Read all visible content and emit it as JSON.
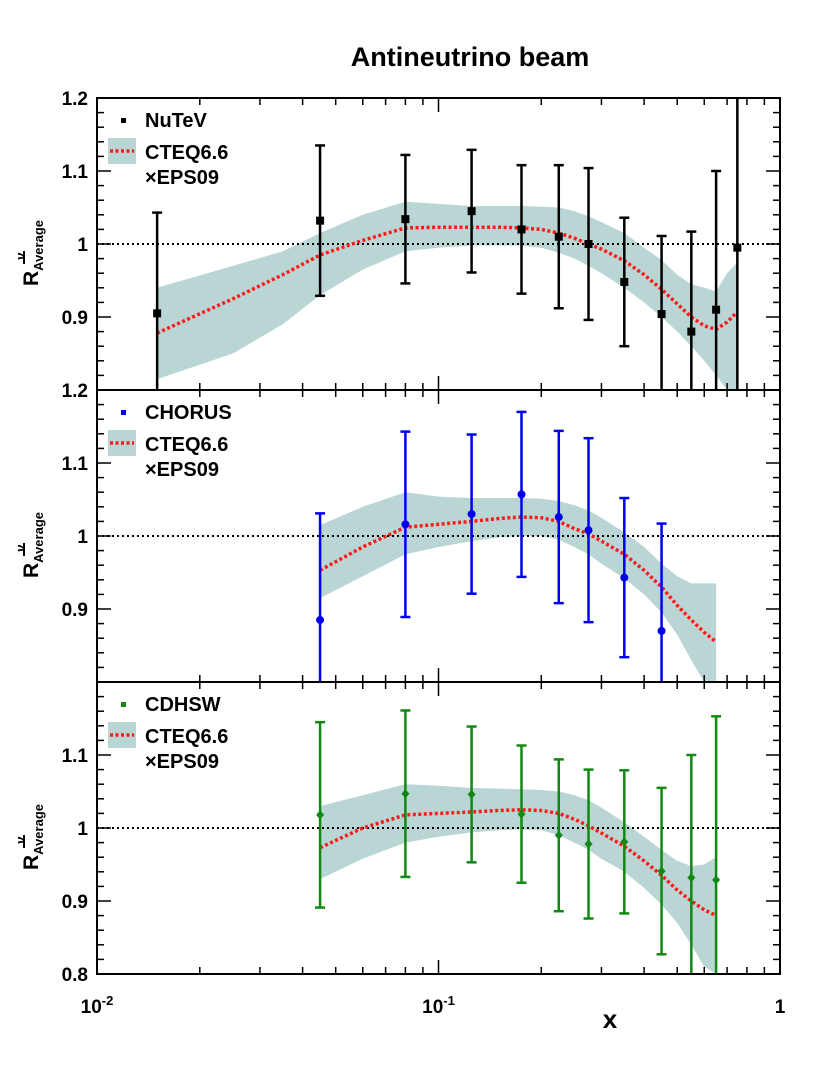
{
  "chart_data": {
    "type": "scatter",
    "title": "Antineutrino beam",
    "xlabel": "x",
    "xscale": "log",
    "xlim": [
      0.01,
      1
    ],
    "x_tick_labels": [
      {
        "x": 0.01,
        "base": "10",
        "exp": "-2"
      },
      {
        "x": 0.1,
        "base": "10",
        "exp": "-1"
      },
      {
        "x": 1,
        "base": "1",
        "exp": ""
      }
    ],
    "ylabel": {
      "main": "R",
      "sub": "Average",
      "sup": "ν"
    },
    "reference_line_y": 1,
    "colors": {
      "band": "#b9d5d4",
      "curve": "#ff1a1a",
      "NuTeV": "#000000",
      "CHORUS": "#0000ee",
      "CDHSW": "#118811"
    },
    "panels": [
      {
        "experiment": "NuTeV",
        "marker": "square",
        "color": "#000000",
        "ylim": [
          0.8,
          1.2
        ],
        "yticks": [
          0.9,
          1,
          1.1,
          1.2
        ],
        "ytick_labels": [
          "0.9",
          "1",
          "1.1",
          "1.2"
        ],
        "legend": [
          "NuTeV",
          "CTEQ6.6",
          "×EPS09"
        ],
        "points": [
          {
            "x": 0.015,
            "y": 0.905,
            "err": 0.138
          },
          {
            "x": 0.045,
            "y": 1.032,
            "err": 0.103
          },
          {
            "x": 0.08,
            "y": 1.034,
            "err": 0.088
          },
          {
            "x": 0.125,
            "y": 1.045,
            "err": 0.084
          },
          {
            "x": 0.175,
            "y": 1.02,
            "err": 0.088
          },
          {
            "x": 0.225,
            "y": 1.01,
            "err": 0.098
          },
          {
            "x": 0.275,
            "y": 1.0,
            "err": 0.104
          },
          {
            "x": 0.35,
            "y": 0.948,
            "err": 0.088
          },
          {
            "x": 0.45,
            "y": 0.904,
            "err": 0.107
          },
          {
            "x": 0.55,
            "y": 0.88,
            "err": 0.137
          },
          {
            "x": 0.65,
            "y": 0.91,
            "err": 0.19
          },
          {
            "x": 0.75,
            "y": 0.995,
            "err": 0.27
          }
        ],
        "curve": {
          "x": [
            0.015,
            0.025,
            0.035,
            0.045,
            0.06,
            0.08,
            0.1,
            0.125,
            0.15,
            0.175,
            0.2,
            0.225,
            0.25,
            0.275,
            0.3,
            0.35,
            0.4,
            0.45,
            0.5,
            0.55,
            0.6,
            0.65,
            0.7,
            0.75
          ],
          "y": [
            0.878,
            0.925,
            0.958,
            0.985,
            1.005,
            1.022,
            1.023,
            1.023,
            1.023,
            1.022,
            1.02,
            1.015,
            1.008,
            1.0,
            0.993,
            0.977,
            0.958,
            0.938,
            0.918,
            0.9,
            0.888,
            0.883,
            0.893,
            0.907
          ]
        },
        "band_upper": [
          0.94,
          0.97,
          0.99,
          1.015,
          1.04,
          1.058,
          1.055,
          1.052,
          1.052,
          1.052,
          1.051,
          1.05,
          1.045,
          1.038,
          1.03,
          1.015,
          0.995,
          0.978,
          0.958,
          0.945,
          0.94,
          0.935,
          0.96,
          0.975
        ],
        "band_lower": [
          0.815,
          0.85,
          0.89,
          0.93,
          0.965,
          0.99,
          0.995,
          0.998,
          0.998,
          0.998,
          0.995,
          0.988,
          0.98,
          0.97,
          0.96,
          0.94,
          0.92,
          0.9,
          0.88,
          0.86,
          0.84,
          0.82,
          0.8,
          0.8
        ]
      },
      {
        "experiment": "CHORUS",
        "marker": "circle",
        "color": "#0000ee",
        "ylim": [
          0.8,
          1.2
        ],
        "yticks": [
          0.9,
          1,
          1.1,
          1.2
        ],
        "ytick_labels": [
          "0.9",
          "1",
          "1.1",
          "1.2"
        ],
        "legend": [
          "CHORUS",
          "CTEQ6.6",
          "×EPS09"
        ],
        "points": [
          {
            "x": 0.045,
            "y": 0.885,
            "err": 0.146
          },
          {
            "x": 0.08,
            "y": 1.016,
            "err": 0.127
          },
          {
            "x": 0.125,
            "y": 1.03,
            "err": 0.109
          },
          {
            "x": 0.175,
            "y": 1.057,
            "err": 0.113
          },
          {
            "x": 0.225,
            "y": 1.026,
            "err": 0.118
          },
          {
            "x": 0.275,
            "y": 1.008,
            "err": 0.126
          },
          {
            "x": 0.35,
            "y": 0.943,
            "err": 0.109
          },
          {
            "x": 0.45,
            "y": 0.87,
            "err": 0.147
          }
        ],
        "curve": {
          "x": [
            0.045,
            0.06,
            0.08,
            0.1,
            0.125,
            0.15,
            0.175,
            0.2,
            0.225,
            0.25,
            0.275,
            0.3,
            0.35,
            0.4,
            0.45,
            0.5,
            0.55,
            0.6,
            0.65
          ],
          "y": [
            0.953,
            0.985,
            1.012,
            1.016,
            1.02,
            1.024,
            1.026,
            1.025,
            1.02,
            1.01,
            1.003,
            0.993,
            0.975,
            0.953,
            0.93,
            0.905,
            0.885,
            0.868,
            0.855
          ]
        },
        "band_upper": [
          1.015,
          1.04,
          1.06,
          1.054,
          1.052,
          1.052,
          1.052,
          1.051,
          1.048,
          1.042,
          1.035,
          1.025,
          1.005,
          0.985,
          0.962,
          0.945,
          0.935,
          0.935,
          0.935
        ],
        "band_lower": [
          0.915,
          0.945,
          0.975,
          0.985,
          0.993,
          0.998,
          1.0,
          1.0,
          0.995,
          0.985,
          0.975,
          0.962,
          0.942,
          0.92,
          0.895,
          0.865,
          0.83,
          0.8,
          0.8
        ]
      },
      {
        "experiment": "CDHSW",
        "marker": "diamond",
        "color": "#118811",
        "ylim": [
          0.8,
          1.2
        ],
        "yticks": [
          0.8,
          0.9,
          1,
          1.1
        ],
        "ytick_labels": [
          "0.8",
          "0.9",
          "1",
          "1.1"
        ],
        "legend": [
          "CDHSW",
          "CTEQ6.6",
          "×EPS09"
        ],
        "points": [
          {
            "x": 0.045,
            "y": 1.018,
            "err": 0.127
          },
          {
            "x": 0.08,
            "y": 1.047,
            "err": 0.114
          },
          {
            "x": 0.125,
            "y": 1.046,
            "err": 0.093
          },
          {
            "x": 0.175,
            "y": 1.019,
            "err": 0.094
          },
          {
            "x": 0.225,
            "y": 0.99,
            "err": 0.104
          },
          {
            "x": 0.275,
            "y": 0.978,
            "err": 0.102
          },
          {
            "x": 0.35,
            "y": 0.981,
            "err": 0.098
          },
          {
            "x": 0.45,
            "y": 0.941,
            "err": 0.114
          },
          {
            "x": 0.55,
            "y": 0.932,
            "err": 0.168
          },
          {
            "x": 0.65,
            "y": 0.929,
            "err": 0.224
          }
        ],
        "curve": {
          "x": [
            0.045,
            0.06,
            0.08,
            0.1,
            0.125,
            0.15,
            0.175,
            0.2,
            0.225,
            0.25,
            0.275,
            0.3,
            0.35,
            0.4,
            0.45,
            0.5,
            0.55,
            0.6,
            0.65
          ],
          "y": [
            0.973,
            1.0,
            1.018,
            1.02,
            1.022,
            1.024,
            1.025,
            1.024,
            1.02,
            1.012,
            1.003,
            0.993,
            0.975,
            0.955,
            0.935,
            0.915,
            0.9,
            0.888,
            0.88
          ]
        },
        "band_upper": [
          1.03,
          1.045,
          1.06,
          1.058,
          1.055,
          1.054,
          1.053,
          1.052,
          1.05,
          1.045,
          1.038,
          1.028,
          1.008,
          0.988,
          0.97,
          0.955,
          0.948,
          0.95,
          0.96
        ],
        "band_lower": [
          0.93,
          0.958,
          0.98,
          0.988,
          0.994,
          0.997,
          0.998,
          0.997,
          0.99,
          0.98,
          0.97,
          0.958,
          0.94,
          0.918,
          0.895,
          0.87,
          0.84,
          0.81,
          0.8
        ]
      }
    ]
  }
}
